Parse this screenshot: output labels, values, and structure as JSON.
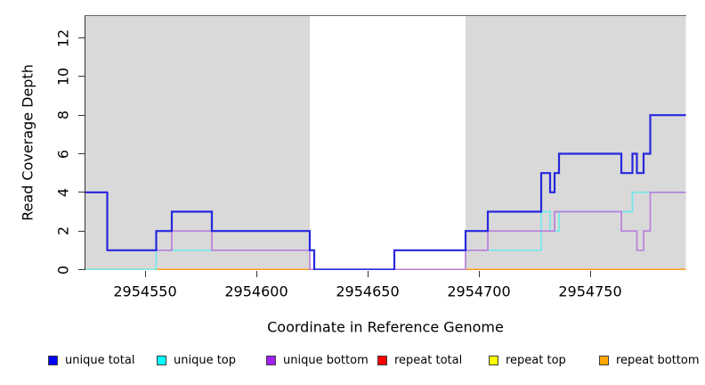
{
  "chart_data": {
    "type": "line",
    "step": true,
    "title": "",
    "xlabel": "Coordinate in Reference Genome",
    "ylabel": "Read Coverage Depth",
    "xlim": [
      2954523,
      2954793
    ],
    "ylim": [
      0,
      13.15
    ],
    "grid": false,
    "legend_position": "bottom",
    "background_shading": {
      "color": "#d9d9d9",
      "regions": [
        {
          "from": 2954523,
          "to": 2954624
        },
        {
          "from": 2954694,
          "to": 2954793
        }
      ]
    },
    "x_ticks": [
      {
        "value": 2954550,
        "label": "2954550"
      },
      {
        "value": 2954600,
        "label": "2954600"
      },
      {
        "value": 2954650,
        "label": "2954650"
      },
      {
        "value": 2954700,
        "label": "2954700"
      },
      {
        "value": 2954750,
        "label": "2954750"
      }
    ],
    "y_ticks": [
      {
        "value": 0,
        "label": "0"
      },
      {
        "value": 2,
        "label": "2"
      },
      {
        "value": 4,
        "label": "4"
      },
      {
        "value": 6,
        "label": "6"
      },
      {
        "value": 8,
        "label": "8"
      },
      {
        "value": 10,
        "label": "10"
      },
      {
        "value": 12,
        "label": "12"
      }
    ],
    "series": [
      {
        "name": "unique total",
        "legend_color": "#0000ff",
        "line_color": "#2727de",
        "line_width": 2.2,
        "points": [
          [
            2954523,
            4
          ],
          [
            2954533,
            1
          ],
          [
            2954555,
            2
          ],
          [
            2954562,
            3
          ],
          [
            2954580,
            2
          ],
          [
            2954624,
            1
          ],
          [
            2954626,
            0
          ],
          [
            2954662,
            1
          ],
          [
            2954694,
            2
          ],
          [
            2954704,
            3
          ],
          [
            2954728,
            5
          ],
          [
            2954732,
            4
          ],
          [
            2954734,
            5
          ],
          [
            2954736,
            6
          ],
          [
            2954764,
            5
          ],
          [
            2954769,
            6
          ],
          [
            2954771,
            5
          ],
          [
            2954774,
            6
          ],
          [
            2954777,
            8
          ],
          [
            2954793,
            8
          ]
        ]
      },
      {
        "name": "unique top",
        "legend_color": "#00ffff",
        "line_color": "#73e8ea",
        "line_width": 1.7,
        "points": [
          [
            2954523,
            0
          ],
          [
            2954555,
            1
          ],
          [
            2954626,
            0
          ],
          [
            2954662,
            1
          ],
          [
            2954728,
            3
          ],
          [
            2954732,
            2
          ],
          [
            2954736,
            3
          ],
          [
            2954769,
            4
          ],
          [
            2954793,
            4
          ]
        ]
      },
      {
        "name": "unique bottom",
        "legend_color": "#a020f0",
        "line_color": "#b87fda",
        "line_width": 1.7,
        "points": [
          [
            2954523,
            4
          ],
          [
            2954533,
            1
          ],
          [
            2954562,
            2
          ],
          [
            2954580,
            1
          ],
          [
            2954624,
            0
          ],
          [
            2954694,
            1
          ],
          [
            2954704,
            2
          ],
          [
            2954734,
            3
          ],
          [
            2954764,
            2
          ],
          [
            2954771,
            1
          ],
          [
            2954774,
            2
          ],
          [
            2954777,
            4
          ],
          [
            2954793,
            4
          ]
        ]
      },
      {
        "name": "repeat total",
        "legend_color": "#ff0000",
        "line_color": "#e03030",
        "line_width": 1.7,
        "points": [
          [
            2954523,
            0
          ],
          [
            2954793,
            0
          ]
        ]
      },
      {
        "name": "repeat top",
        "legend_color": "#ffff00",
        "line_color": "#f0f000",
        "line_width": 1.7,
        "points": [
          [
            2954523,
            0
          ],
          [
            2954793,
            0
          ]
        ]
      },
      {
        "name": "repeat bottom",
        "legend_color": "#ffa500",
        "line_color": "#ff9c1e",
        "line_width": 1.8,
        "points": [
          [
            2954523,
            0
          ],
          [
            2954793,
            0
          ]
        ]
      }
    ]
  }
}
